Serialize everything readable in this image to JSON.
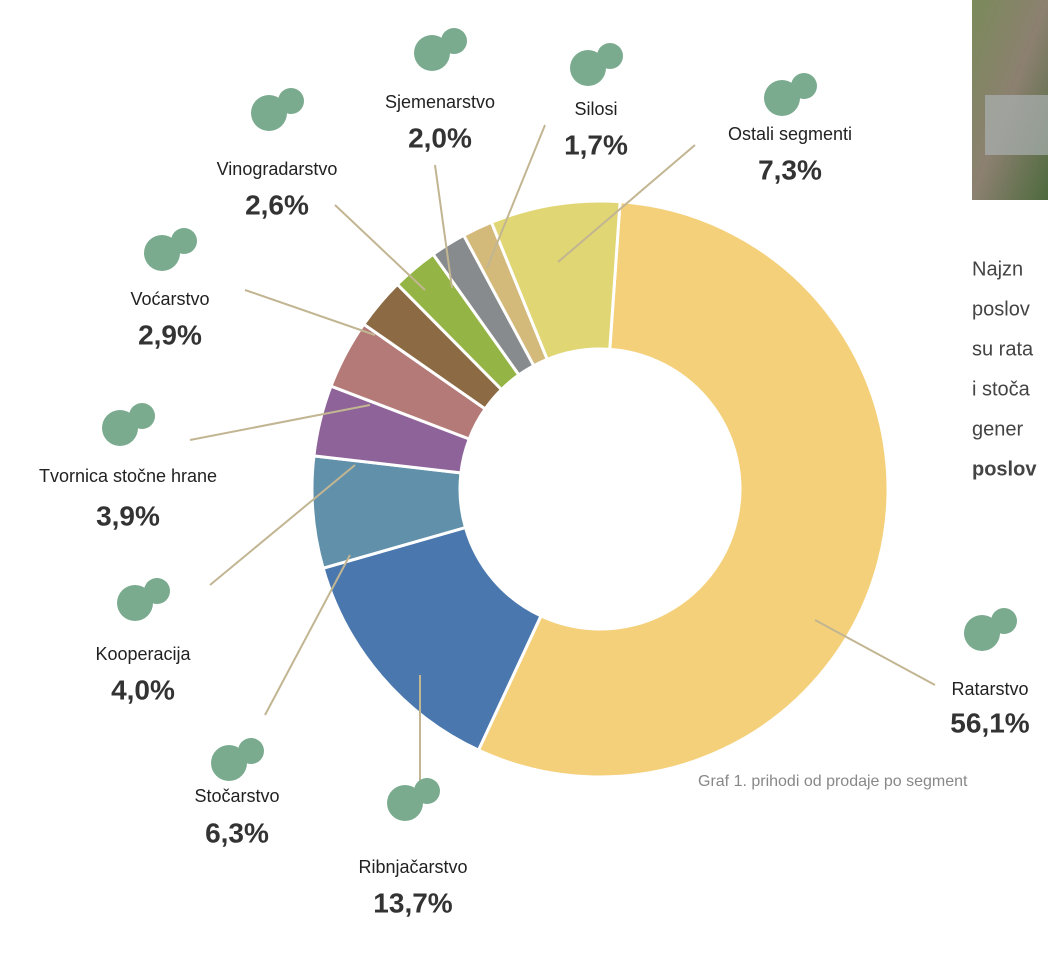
{
  "chart_data": {
    "type": "pie",
    "categories": [
      "Ratarstvo",
      "Ribnjačarstvo",
      "Stočarstvo",
      "Kooperacija",
      "Tvornica stočne hrane",
      "Voćarstvo",
      "Vinogradarstvo",
      "Sjemenarstvo",
      "Silosi",
      "Ostali segmenti"
    ],
    "values": [
      56.1,
      13.7,
      6.3,
      4.0,
      3.9,
      2.9,
      2.6,
      2.0,
      1.7,
      7.3
    ],
    "value_labels": [
      "56,1%",
      "13,7%",
      "6,3%",
      "4,0%",
      "3,9%",
      "2,9%",
      "2,6%",
      "2,0%",
      "1,7%",
      "7,3%"
    ],
    "colors": [
      "#f4d07a",
      "#4a78ae",
      "#6190aa",
      "#8e6399",
      "#b47a78",
      "#8b6a44",
      "#94b545",
      "#888b8d",
      "#d3ba7a",
      "#e0d674"
    ],
    "donut": true
  },
  "side_text": {
    "lines": [
      "Najzn",
      "poslov",
      "su rata",
      "i stoča",
      "gener",
      "poslov"
    ]
  },
  "caption": "Graf 1. prihodi od prodaje po segment"
}
